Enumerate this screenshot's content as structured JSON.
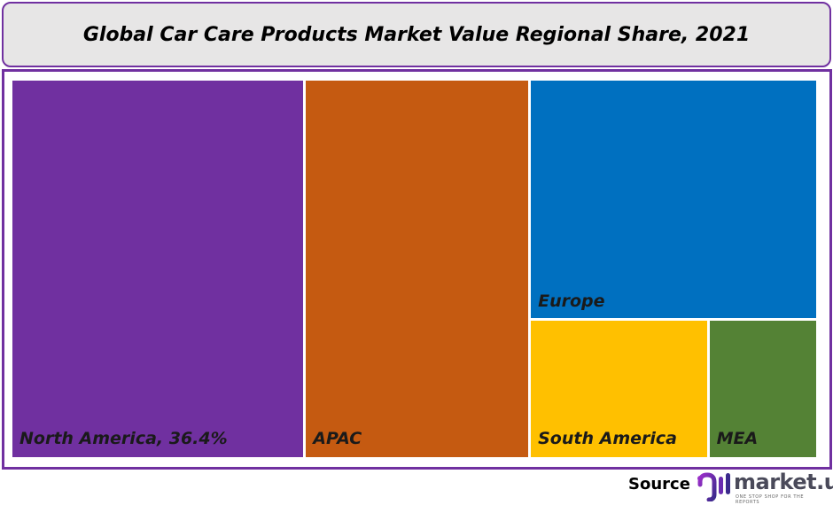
{
  "chart_data": {
    "type": "treemap",
    "title": "Global Car Care Products Market Value Regional Share, 2021",
    "items": [
      {
        "name": "North America",
        "label": "North America, 36.4%",
        "value": 36.4,
        "color": "#7030a0"
      },
      {
        "name": "APAC",
        "label": "APAC",
        "value": 27.9,
        "color": "#c55a11"
      },
      {
        "name": "Europe",
        "label": "Europe",
        "value": 22.8,
        "color": "#0070c0"
      },
      {
        "name": "South America",
        "label": "South America",
        "value": 8.0,
        "color": "#ffc000"
      },
      {
        "name": "MEA",
        "label": "MEA",
        "value": 4.9,
        "color": "#548235"
      }
    ]
  },
  "footer": {
    "source_label": "Source",
    "brand": "market.us",
    "tagline": "ONE STOP SHOP FOR THE REPORTS"
  },
  "colors": {
    "accent": "#7030a0",
    "title_bg": "#e7e6e6"
  }
}
